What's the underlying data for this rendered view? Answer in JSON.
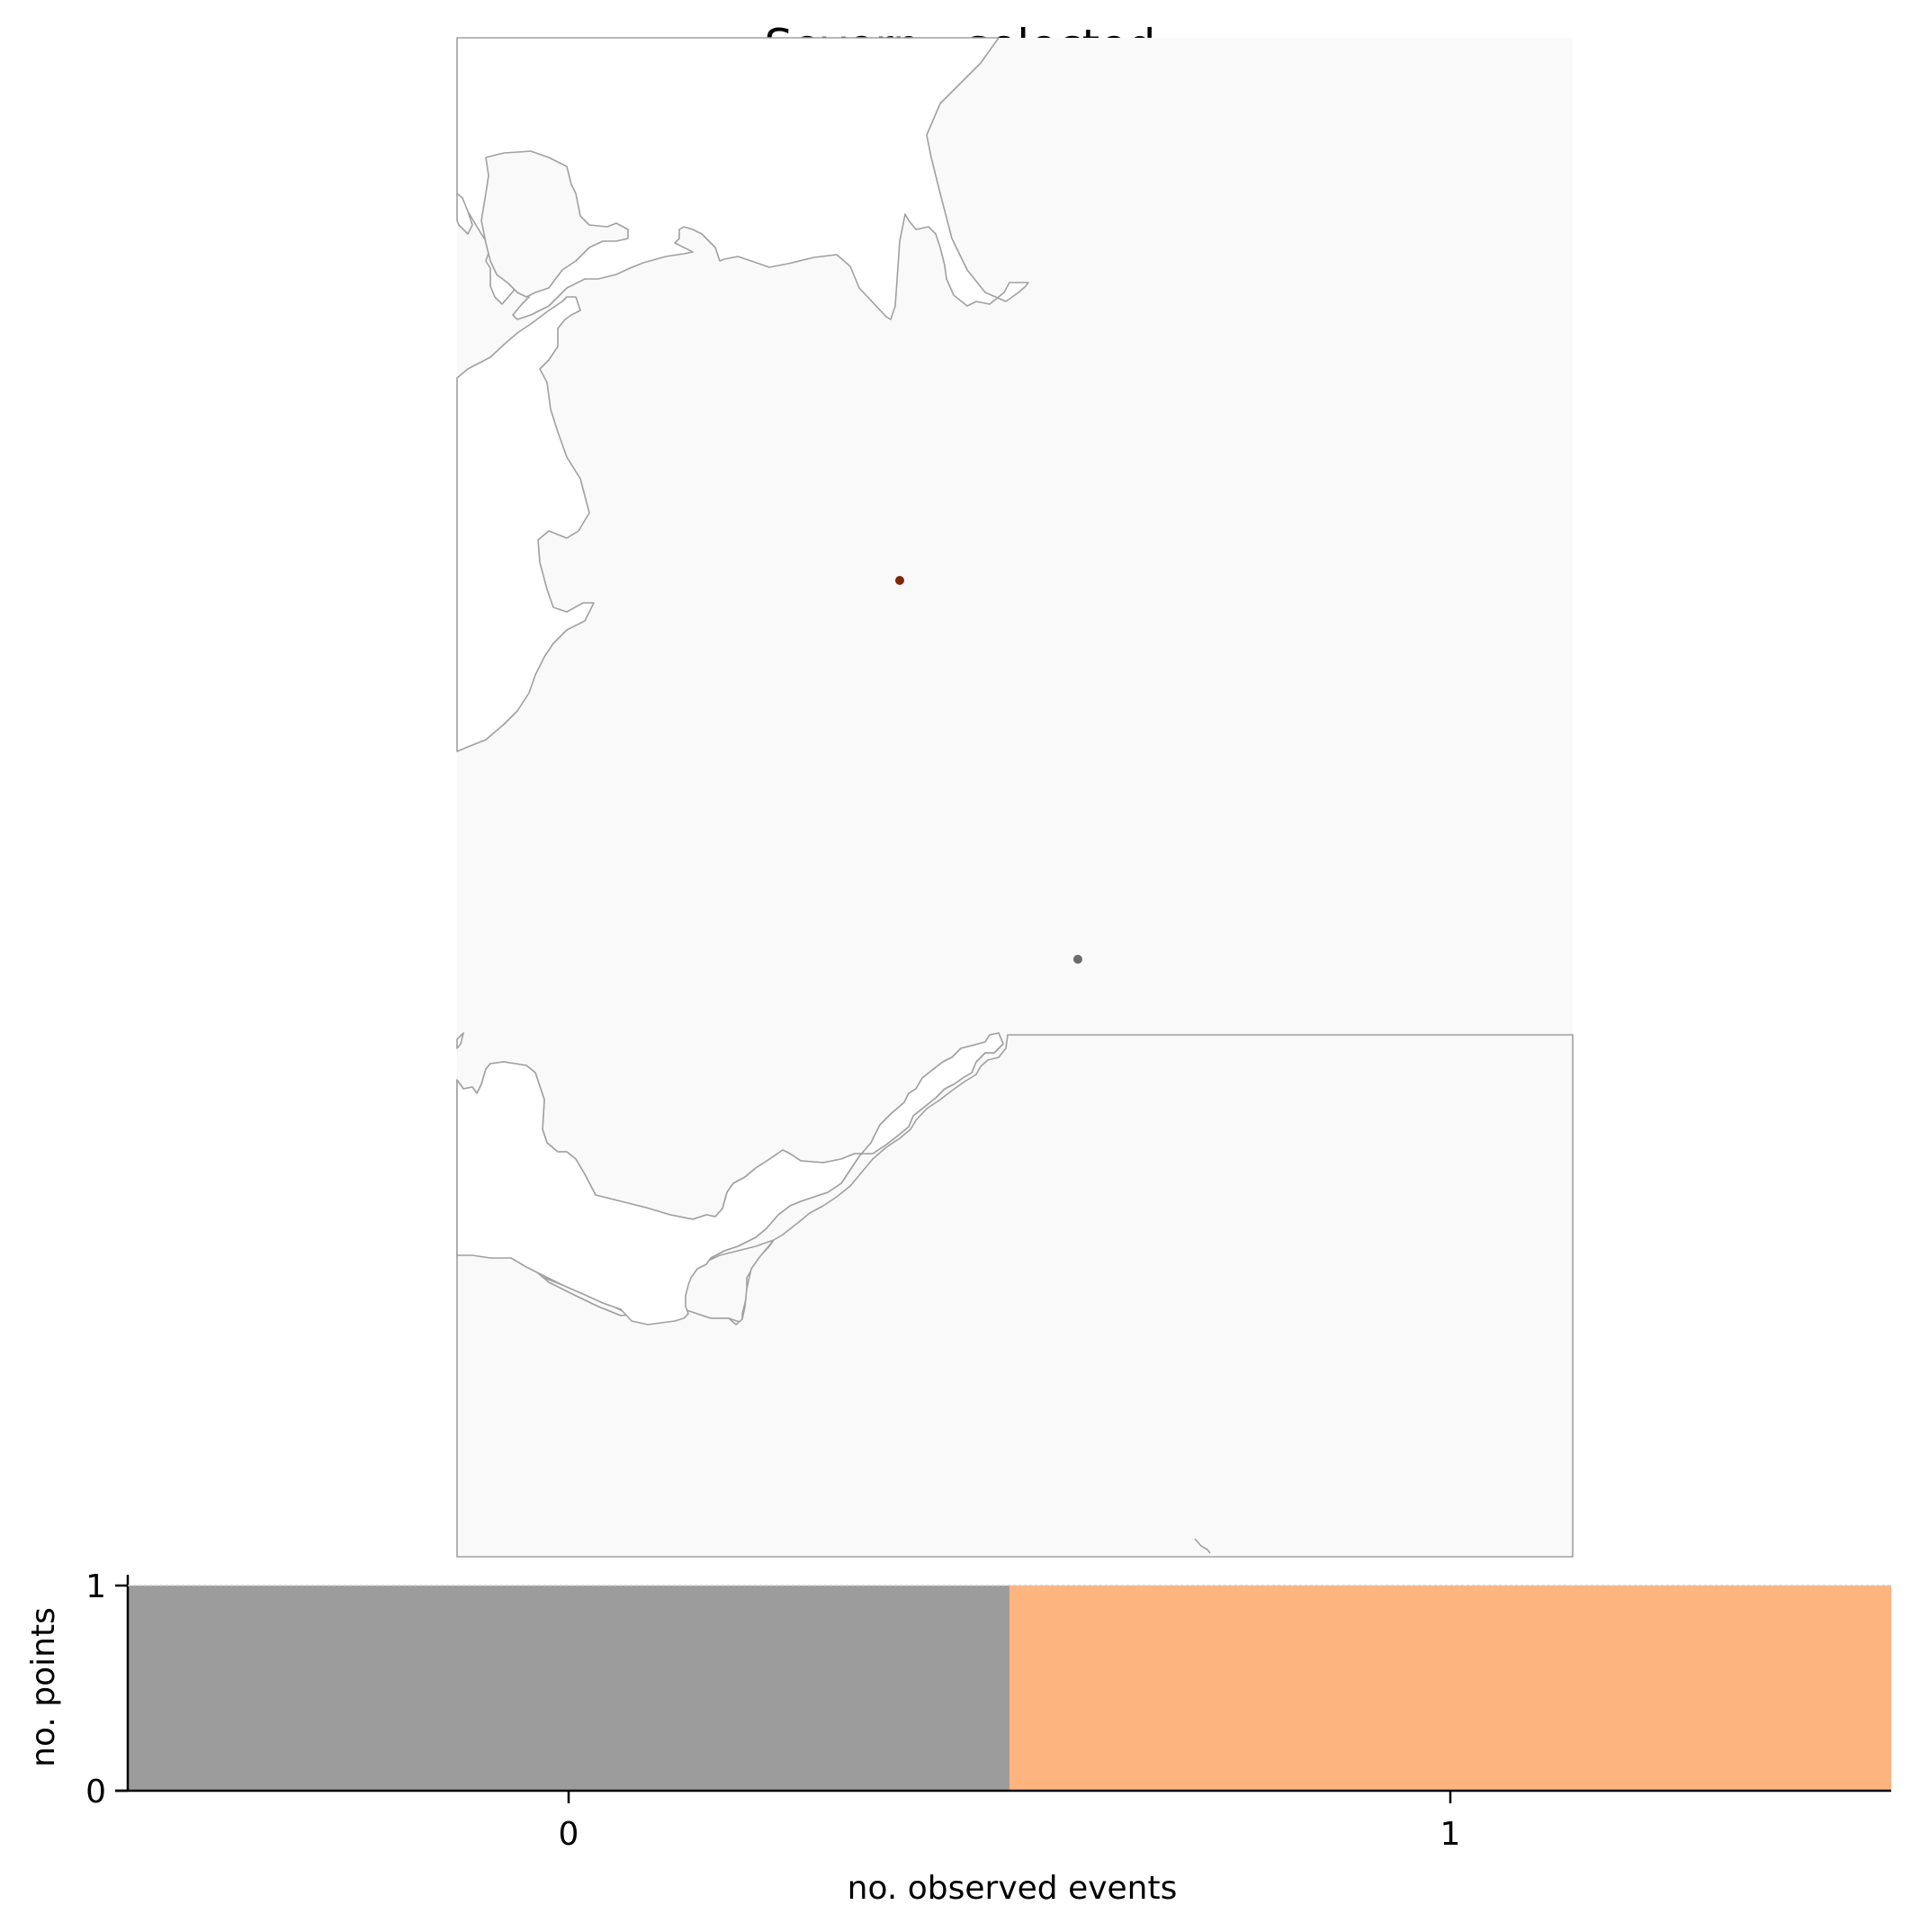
{
  "title": "Severn - selected",
  "colors": {
    "land": "#f9f9f9",
    "coast": "#a0a0a0",
    "point_selected": "#7f2704",
    "point_other": "#6b6b6b",
    "bar_zero": "#9c9c9c",
    "bar_one": "#fdb47f"
  },
  "map": {
    "points": [
      {
        "name": "selected-station",
        "color_key": "point_selected"
      },
      {
        "name": "other-station",
        "color_key": "point_other"
      }
    ]
  },
  "chart_data": {
    "type": "bar",
    "categories": [
      "0",
      "1"
    ],
    "values": [
      1,
      1
    ],
    "xlabel": "no. observed events",
    "ylabel": "no. points",
    "ylim": [
      0,
      1
    ],
    "yticks": [
      "0",
      "1"
    ],
    "grid": false,
    "legend": "none"
  }
}
